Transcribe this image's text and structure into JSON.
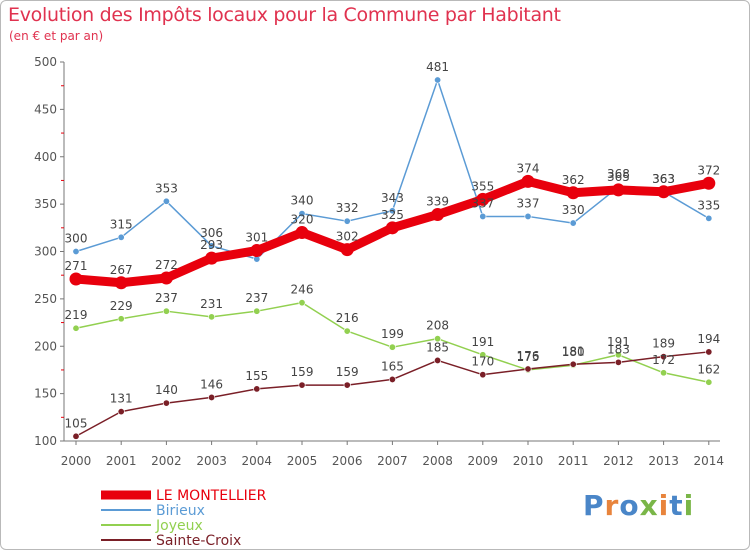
{
  "header": {
    "title": "Evolution des Impôts locaux pour la Commune par Habitant",
    "subtitle": "(en € et par an)"
  },
  "logo": {
    "text": "Proxiti",
    "letters": [
      "P",
      "r",
      "o",
      "x",
      "i",
      "t"
    ],
    "last": "i"
  },
  "chart_data": {
    "type": "line",
    "x": [
      2000,
      2001,
      2002,
      2003,
      2004,
      2005,
      2006,
      2007,
      2008,
      2009,
      2010,
      2011,
      2012,
      2013,
      2014
    ],
    "ylim": [
      100,
      500
    ],
    "yticks": [
      100,
      150,
      200,
      250,
      300,
      350,
      400,
      450,
      500
    ],
    "grid": false,
    "legend_position": "bottom-left",
    "series": [
      {
        "name": "LE MONTELLIER",
        "color": "#e8000d",
        "width": 9,
        "values": [
          271,
          267,
          272,
          293,
          301,
          320,
          302,
          325,
          339,
          355,
          374,
          362,
          365,
          363,
          372
        ],
        "labels": [
          "271",
          "267",
          "272",
          "293",
          "301",
          "320",
          "302",
          "325",
          "339",
          "355",
          "374",
          "362",
          "365",
          "363",
          "372"
        ]
      },
      {
        "name": "Birieux",
        "color": "#5b9bd5",
        "width": 1.5,
        "values": [
          300,
          315,
          353,
          306,
          292,
          340,
          332,
          343,
          481,
          337,
          337,
          330,
          368,
          363,
          335
        ],
        "labels": [
          "300",
          "315",
          "353",
          "306",
          "",
          "340",
          "332",
          "343",
          "481",
          "337",
          "337",
          "330",
          "368",
          "363",
          "335"
        ]
      },
      {
        "name": "Joyeux",
        "color": "#92d050",
        "width": 1.5,
        "values": [
          219,
          229,
          237,
          231,
          237,
          246,
          216,
          199,
          208,
          191,
          175,
          180,
          191,
          172,
          162
        ],
        "labels": [
          "219",
          "229",
          "237",
          "231",
          "237",
          "246",
          "216",
          "199",
          "208",
          "191",
          "175",
          "180",
          "191",
          "172",
          "162"
        ]
      },
      {
        "name": "Sainte-Croix",
        "color": "#7a1f27",
        "width": 1.5,
        "values": [
          105,
          131,
          140,
          146,
          155,
          159,
          159,
          165,
          185,
          170,
          176,
          181,
          183,
          189,
          194
        ],
        "labels": [
          "105",
          "131",
          "140",
          "146",
          "155",
          "159",
          "159",
          "165",
          "185",
          "170",
          "176",
          "181",
          "183",
          "189",
          "194"
        ]
      }
    ]
  }
}
